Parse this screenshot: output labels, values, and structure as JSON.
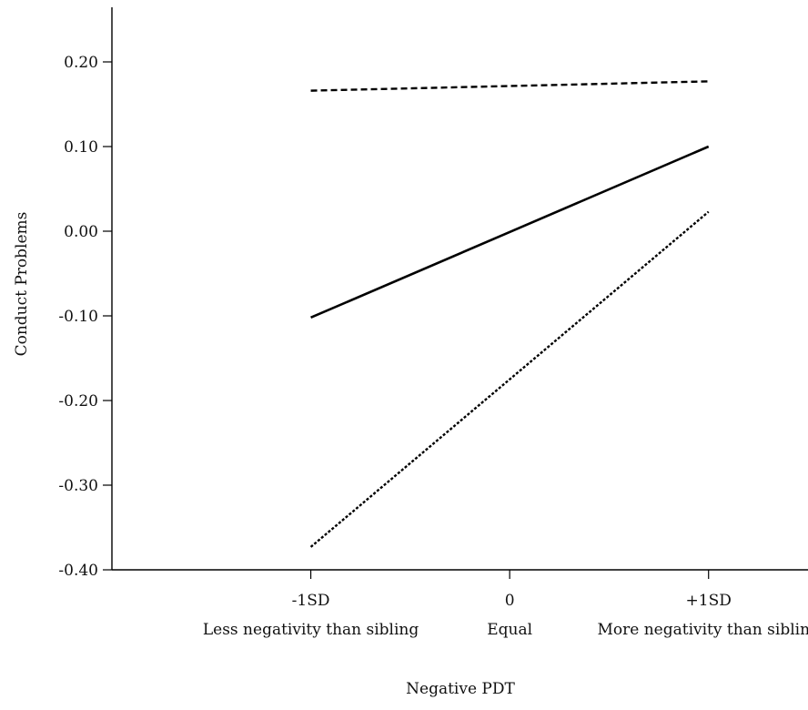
{
  "chart_data": {
    "type": "line",
    "title": "",
    "xlabel": "Negative PDT",
    "ylabel": "Conduct Problems",
    "x_ticks": [
      {
        "value": -1,
        "label": "-1SD",
        "sublabel": "Less negativity than sibling"
      },
      {
        "value": 0,
        "label": "0",
        "sublabel": "Equal"
      },
      {
        "value": 1,
        "label": "+1SD",
        "sublabel": "More negativity than sibling"
      }
    ],
    "y_ticks": [
      "0.20",
      "0.10",
      "0.00",
      "-0.10",
      "-0.20",
      "-0.30",
      "-0.40"
    ],
    "xlim": [
      -2,
      1.5
    ],
    "ylim": [
      -0.4,
      0.2
    ],
    "grid": false,
    "legend": "none",
    "series": [
      {
        "style": "dashed",
        "color": "#000000",
        "x": [
          -1,
          1
        ],
        "y": [
          0.166,
          0.177
        ]
      },
      {
        "style": "solid",
        "color": "#000000",
        "x": [
          -1,
          1
        ],
        "y": [
          -0.102,
          0.1
        ]
      },
      {
        "style": "dotted",
        "color": "#000000",
        "x": [
          -1,
          1
        ],
        "y": [
          -0.373,
          0.023
        ]
      }
    ]
  }
}
